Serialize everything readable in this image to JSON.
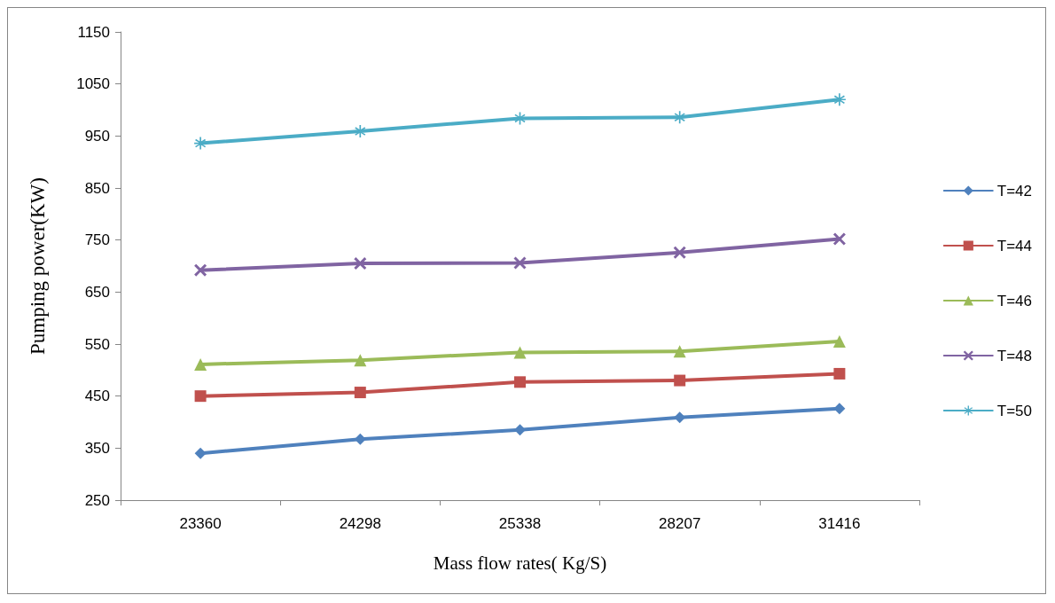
{
  "chart_data": {
    "type": "line",
    "xlabel": "Mass flow rates( Kg/S)",
    "ylabel": "Pumping power(KW)",
    "categories": [
      "23360",
      "24298",
      "25338",
      "28207",
      "31416"
    ],
    "ylim": [
      250,
      1150
    ],
    "yticks": [
      250,
      350,
      450,
      550,
      650,
      750,
      850,
      950,
      1050,
      1150
    ],
    "grid": false,
    "legend": "right",
    "line_style": "solid",
    "series": [
      {
        "name": "T=42",
        "color": "#4f81bd",
        "marker": "diamond",
        "values": [
          340,
          367,
          385,
          409,
          426
        ]
      },
      {
        "name": "T=44",
        "color": "#c0504d",
        "marker": "square",
        "values": [
          450,
          457,
          477,
          480,
          493
        ]
      },
      {
        "name": "T=46",
        "color": "#9bbb59",
        "marker": "triangle",
        "values": [
          511,
          519,
          534,
          536,
          555
        ]
      },
      {
        "name": "T=48",
        "color": "#8064a2",
        "marker": "cross",
        "values": [
          692,
          705,
          706,
          726,
          752
        ]
      },
      {
        "name": "T=50",
        "color": "#4bacc6",
        "marker": "star",
        "values": [
          936,
          959,
          984,
          986,
          1020
        ]
      }
    ]
  }
}
